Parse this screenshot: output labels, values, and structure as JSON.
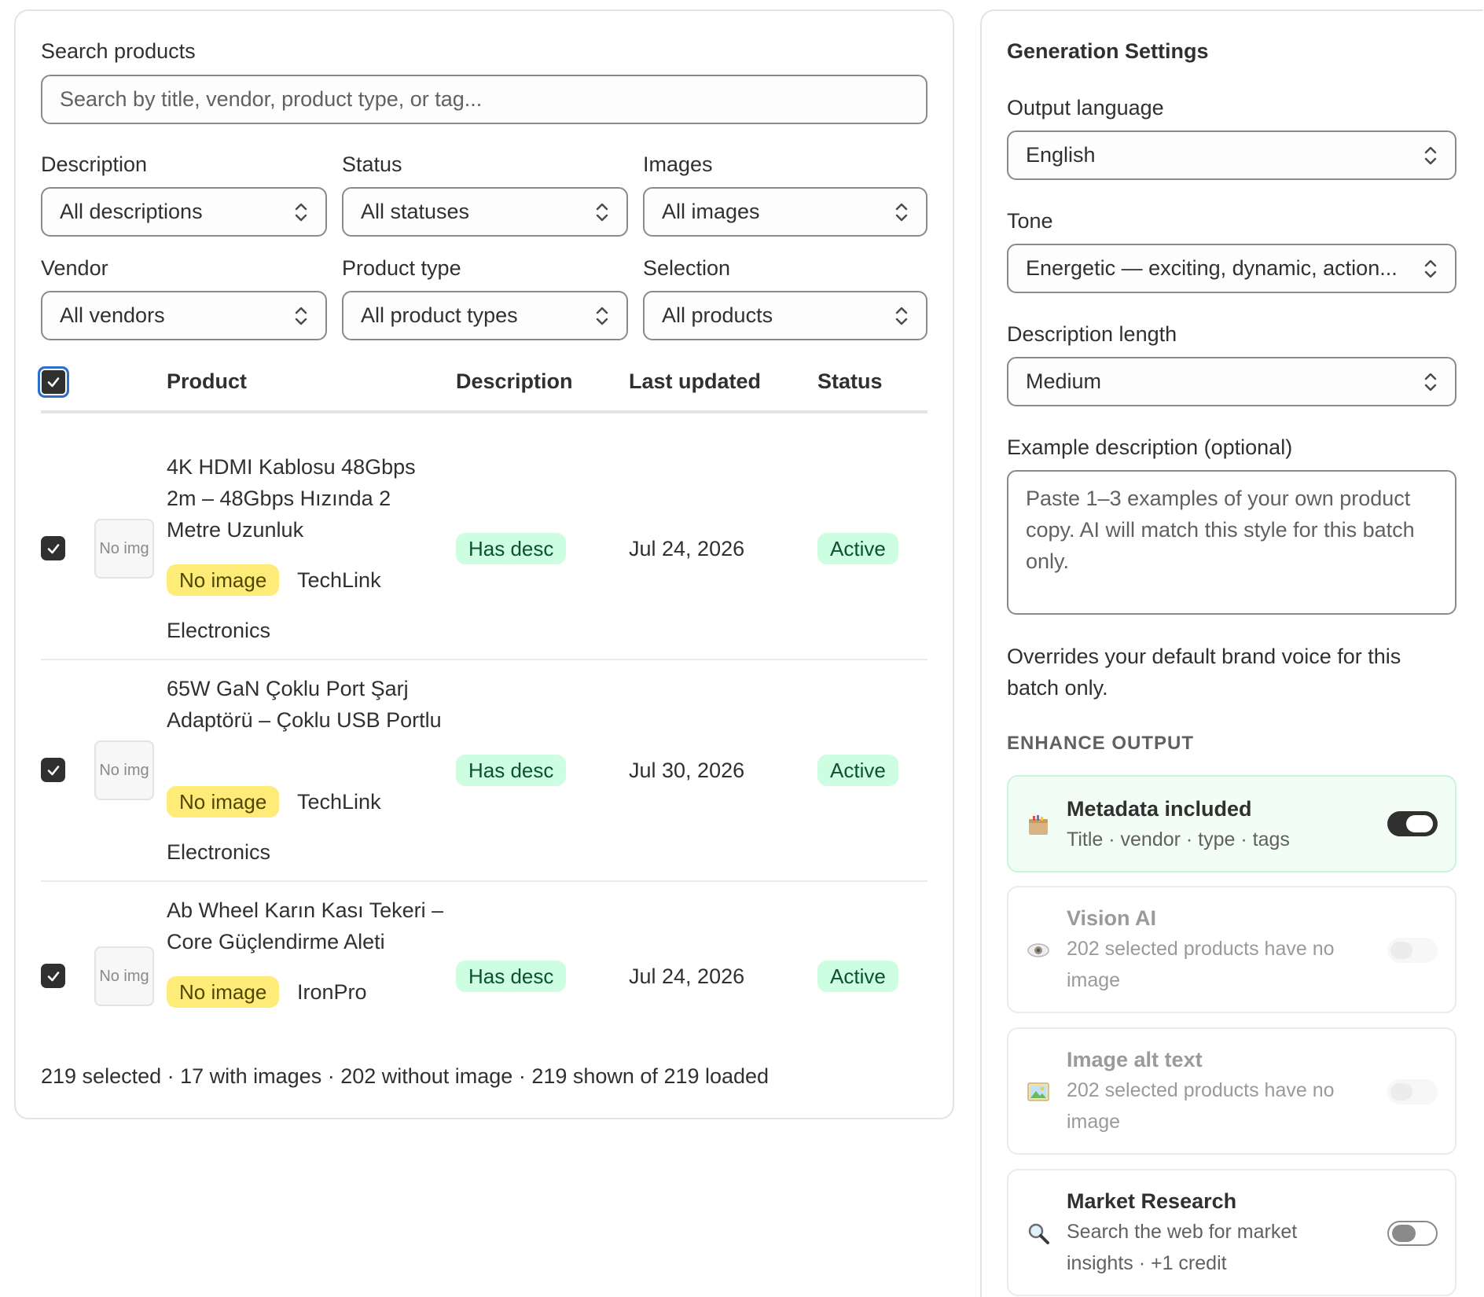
{
  "search": {
    "label": "Search products",
    "placeholder": "Search by title, vendor, product type, or tag..."
  },
  "filters": [
    {
      "label": "Description",
      "value": "All descriptions"
    },
    {
      "label": "Status",
      "value": "All statuses"
    },
    {
      "label": "Images",
      "value": "All images"
    },
    {
      "label": "Vendor",
      "value": "All vendors"
    },
    {
      "label": "Product type",
      "value": "All product types"
    },
    {
      "label": "Selection",
      "value": "All products"
    }
  ],
  "table": {
    "headers": [
      "Product",
      "Description",
      "Last updated",
      "Status"
    ],
    "rows": [
      {
        "checked": true,
        "thumb": "No img",
        "title": "4K HDMI Kablosu 48Gbps 2m – 48Gbps Hızında 2 Metre Uzunluk",
        "image_badge": "No image",
        "vendor": "TechLink",
        "type": "Electronics",
        "description": "Has desc",
        "updated": "Jul 24, 2026",
        "status": "Active"
      },
      {
        "checked": true,
        "thumb": "No img",
        "title": "65W GaN Çoklu Port Şarj Adaptörü – Çoklu USB Portlu",
        "image_badge": "No image",
        "vendor": "TechLink",
        "type": "Electronics",
        "description": "Has desc",
        "updated": "Jul 30, 2026",
        "status": "Active"
      },
      {
        "checked": true,
        "thumb": "No img",
        "title": "Ab Wheel Karın Kası Tekeri – Core Güçlendirme Aleti",
        "image_badge": "No image",
        "vendor": "IronPro",
        "type": "",
        "description": "Has desc",
        "updated": "Jul 24, 2026",
        "status": "Active"
      }
    ]
  },
  "footer": "219 selected · 17 with images · 202 without image · 219 shown of 219 loaded",
  "settings": {
    "heading": "Generation Settings",
    "language_label": "Output language",
    "language_value": "English",
    "tone_label": "Tone",
    "tone_value": "Energetic — exciting, dynamic, action...",
    "length_label": "Description length",
    "length_value": "Medium",
    "example_label": "Example description (optional)",
    "example_placeholder": "Paste 1–3 examples of your own product copy. AI will match this style for this batch only.",
    "help": "Overrides your default brand voice for this batch only.",
    "enhance_heading": "ENHANCE OUTPUT",
    "features": [
      {
        "icon": "box-icon",
        "title": "Metadata included",
        "desc": "Title · vendor · type · tags",
        "state": "on"
      },
      {
        "icon": "eye-icon",
        "title": "Vision AI",
        "desc": "202 selected products have no image",
        "state": "disabled"
      },
      {
        "icon": "picture-icon",
        "title": "Image alt text",
        "desc": "202 selected products have no image",
        "state": "disabled"
      },
      {
        "icon": "magnifier-icon",
        "title": "Market Research",
        "desc": "Search the web for market insights · +1 credit",
        "state": "off"
      }
    ]
  },
  "colors": {
    "accent_green_bg": "#cdfee1",
    "badge_yellow_bg": "#ffeb78",
    "focus_blue": "#2c6ecb"
  }
}
